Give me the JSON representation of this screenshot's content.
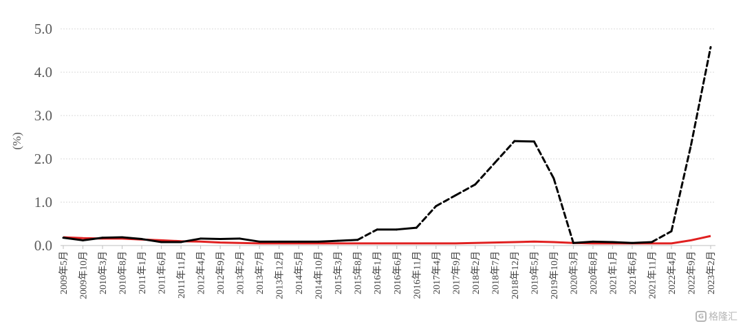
{
  "chart_data": {
    "type": "line",
    "title": "",
    "xlabel": "",
    "ylabel": "(%)",
    "ylim": [
      0,
      5
    ],
    "y_ticks": [
      "0.0",
      "1.0",
      "2.0",
      "3.0",
      "4.0",
      "5.0"
    ],
    "grid": true,
    "legend": "none",
    "x": [
      "2009年5月",
      "2009年10月",
      "2010年3月",
      "2010年8月",
      "2011年1月",
      "2011年6月",
      "2011年11月",
      "2012年4月",
      "2012年9月",
      "2013年2月",
      "2013年7月",
      "2013年12月",
      "2014年5月",
      "2014年10月",
      "2015年3月",
      "2015年8月",
      "2016年1月",
      "2016年6月",
      "2016年11月",
      "2017年4月",
      "2017年9月",
      "2018年2月",
      "2018年7月",
      "2018年12月",
      "2019年5月",
      "2019年10月",
      "2020年3月",
      "2020年8月",
      "2021年1月",
      "2021年6月",
      "2021年11月",
      "2022年4月",
      "2022年9月",
      "2023年2月"
    ],
    "series": [
      {
        "color": "#000000",
        "style": "black line, dashed during rising and falling phases",
        "values": [
          0.18,
          0.12,
          0.18,
          0.19,
          0.15,
          0.08,
          0.08,
          0.16,
          0.15,
          0.16,
          0.09,
          0.09,
          0.09,
          0.09,
          0.11,
          0.13,
          0.37,
          0.37,
          0.41,
          0.91,
          1.16,
          1.41,
          1.91,
          2.41,
          2.4,
          1.55,
          0.06,
          0.09,
          0.08,
          0.06,
          0.08,
          0.33,
          2.32,
          4.58
        ]
      },
      {
        "color": "#e02020",
        "style": "solid red line",
        "values": [
          0.19,
          0.17,
          0.16,
          0.16,
          0.14,
          0.12,
          0.1,
          0.09,
          0.07,
          0.06,
          0.05,
          0.05,
          0.05,
          0.05,
          0.05,
          0.05,
          0.05,
          0.05,
          0.05,
          0.05,
          0.05,
          0.06,
          0.07,
          0.08,
          0.09,
          0.08,
          0.06,
          0.05,
          0.05,
          0.05,
          0.05,
          0.05,
          0.12,
          0.22
        ]
      }
    ]
  },
  "watermark": {
    "text": "格隆汇",
    "icon": "g-logo-icon"
  }
}
